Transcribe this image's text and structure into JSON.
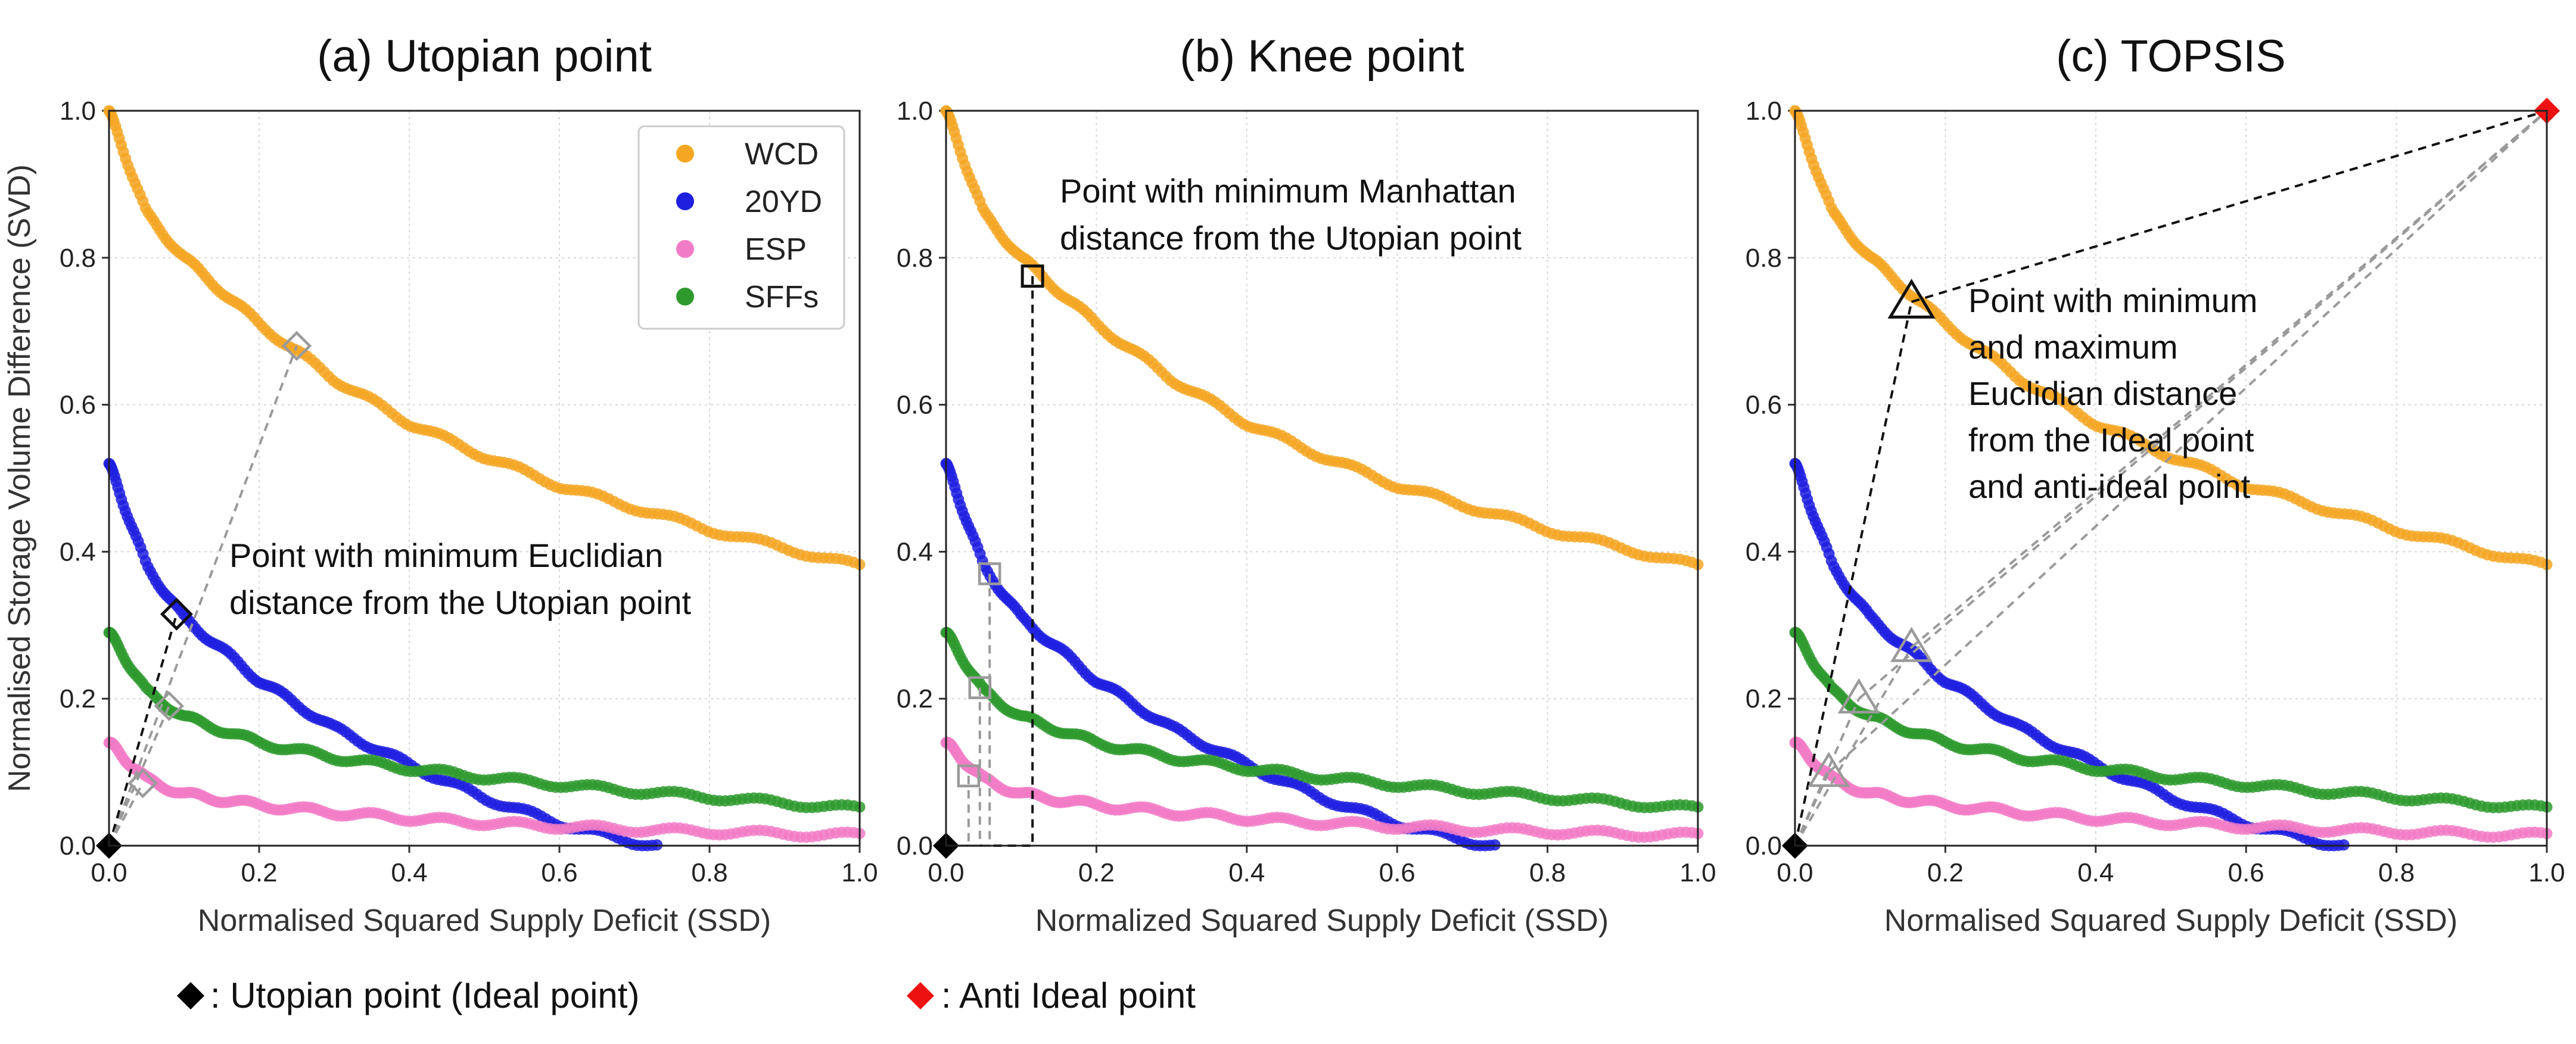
{
  "colors": {
    "WCD": "#f5a623",
    "20YD": "#1f1fe0",
    "ESP": "#f27bc6",
    "SFFs": "#2e9a2e",
    "utopian": "#000000",
    "anti_ideal": "#ee1111"
  },
  "legend_entries": [
    "WCD",
    "20YD",
    "ESP",
    "SFFs"
  ],
  "bottom_legend": {
    "utopian_label": ": Utopian  point (Ideal point)",
    "anti_ideal_label": ": Anti Ideal point",
    "utopian_marker": "black-diamond-icon",
    "anti_ideal_marker": "red-diamond-icon"
  },
  "chart_data": [
    {
      "type": "scatter",
      "title": "(a) Utopian point",
      "xlabel": "Normalised Squared Supply Deficit (SSD)",
      "ylabel": "Normalised Storage Volume Difference (SVD)",
      "xlim": [
        0,
        1
      ],
      "ylim": [
        0,
        1
      ],
      "xticks": [
        "0.0",
        "0.2",
        "0.4",
        "0.6",
        "0.8",
        "1.0"
      ],
      "yticks": [
        "0.0",
        "0.2",
        "0.4",
        "0.6",
        "0.8",
        "1.0"
      ],
      "grid": true,
      "legend": "top-right",
      "series": [
        {
          "name": "WCD",
          "x": [
            0.0,
            0.05,
            0.1,
            0.2,
            0.3,
            0.4,
            0.5,
            0.6,
            0.7,
            0.8,
            0.9,
            1.0
          ],
          "y": [
            1.0,
            0.86,
            0.8,
            0.71,
            0.635,
            0.575,
            0.53,
            0.49,
            0.46,
            0.43,
            0.405,
            0.38
          ]
        },
        {
          "name": "20YD",
          "x": [
            0.0,
            0.05,
            0.1,
            0.2,
            0.3,
            0.4,
            0.5,
            0.6,
            0.7,
            0.73
          ],
          "y": [
            0.52,
            0.38,
            0.31,
            0.225,
            0.16,
            0.11,
            0.065,
            0.03,
            0.005,
            0.0
          ]
        },
        {
          "name": "ESP",
          "x": [
            0.0,
            0.05,
            0.1,
            0.2,
            0.3,
            0.4,
            0.5,
            0.6,
            0.7,
            0.8,
            0.9,
            1.0
          ],
          "y": [
            0.14,
            0.09,
            0.07,
            0.055,
            0.045,
            0.037,
            0.031,
            0.026,
            0.022,
            0.019,
            0.016,
            0.014
          ]
        },
        {
          "name": "SFFs",
          "x": [
            0.0,
            0.05,
            0.1,
            0.2,
            0.3,
            0.4,
            0.5,
            0.6,
            0.7,
            0.8,
            0.9,
            1.0
          ],
          "y": [
            0.29,
            0.21,
            0.175,
            0.14,
            0.12,
            0.105,
            0.093,
            0.083,
            0.074,
            0.066,
            0.058,
            0.05
          ]
        }
      ],
      "selected_points": [
        {
          "series": "WCD",
          "x": 0.25,
          "y": 0.68,
          "marker": "diamond"
        },
        {
          "series": "20YD",
          "x": 0.09,
          "y": 0.315,
          "marker": "diamond"
        },
        {
          "series": "SFFs",
          "x": 0.08,
          "y": 0.19,
          "marker": "diamond"
        },
        {
          "series": "ESP",
          "x": 0.045,
          "y": 0.085,
          "marker": "diamond"
        }
      ],
      "utopian_point": {
        "x": 0,
        "y": 0
      },
      "annotation": [
        "Point with minimum Euclidian",
        "distance from the Utopian point"
      ]
    },
    {
      "type": "scatter",
      "title": "(b) Knee point",
      "xlabel": "Normalized Squared Supply Deficit (SSD)",
      "ylabel": "",
      "xlim": [
        0,
        1
      ],
      "ylim": [
        0,
        1
      ],
      "xticks": [
        "0.0",
        "0.2",
        "0.4",
        "0.6",
        "0.8",
        "1.0"
      ],
      "yticks": [
        "0.0",
        "0.2",
        "0.4",
        "0.6",
        "0.8",
        "1.0"
      ],
      "grid": true,
      "series": [
        {
          "name": "WCD",
          "x": [
            0.0,
            0.05,
            0.1,
            0.2,
            0.3,
            0.4,
            0.5,
            0.6,
            0.7,
            0.8,
            0.9,
            1.0
          ],
          "y": [
            1.0,
            0.86,
            0.8,
            0.71,
            0.635,
            0.575,
            0.53,
            0.49,
            0.46,
            0.43,
            0.405,
            0.38
          ]
        },
        {
          "name": "20YD",
          "x": [
            0.0,
            0.05,
            0.1,
            0.2,
            0.3,
            0.4,
            0.5,
            0.6,
            0.7,
            0.73
          ],
          "y": [
            0.52,
            0.38,
            0.31,
            0.225,
            0.16,
            0.11,
            0.065,
            0.03,
            0.005,
            0.0
          ]
        },
        {
          "name": "ESP",
          "x": [
            0.0,
            0.05,
            0.1,
            0.2,
            0.3,
            0.4,
            0.5,
            0.6,
            0.7,
            0.8,
            0.9,
            1.0
          ],
          "y": [
            0.14,
            0.09,
            0.07,
            0.055,
            0.045,
            0.037,
            0.031,
            0.026,
            0.022,
            0.019,
            0.016,
            0.014
          ]
        },
        {
          "name": "SFFs",
          "x": [
            0.0,
            0.05,
            0.1,
            0.2,
            0.3,
            0.4,
            0.5,
            0.6,
            0.7,
            0.8,
            0.9,
            1.0
          ],
          "y": [
            0.29,
            0.21,
            0.175,
            0.14,
            0.12,
            0.105,
            0.093,
            0.083,
            0.074,
            0.066,
            0.058,
            0.05
          ]
        }
      ],
      "selected_points": [
        {
          "series": "WCD",
          "x": 0.115,
          "y": 0.775,
          "marker": "square"
        },
        {
          "series": "20YD",
          "x": 0.058,
          "y": 0.37,
          "marker": "square"
        },
        {
          "series": "SFFs",
          "x": 0.045,
          "y": 0.215,
          "marker": "square"
        },
        {
          "series": "ESP",
          "x": 0.03,
          "y": 0.095,
          "marker": "square"
        }
      ],
      "utopian_point": {
        "x": 0,
        "y": 0
      },
      "annotation": [
        "Point with minimum Manhattan",
        "distance from the Utopian point"
      ]
    },
    {
      "type": "scatter",
      "title": "(c) TOPSIS",
      "xlabel": "Normalised Squared Supply Deficit (SSD)",
      "ylabel": "",
      "xlim": [
        0,
        1
      ],
      "ylim": [
        0,
        1
      ],
      "xticks": [
        "0.0",
        "0.2",
        "0.4",
        "0.6",
        "0.8",
        "1.0"
      ],
      "yticks": [
        "0.0",
        "0.2",
        "0.4",
        "0.6",
        "0.8",
        "1.0"
      ],
      "grid": true,
      "series": [
        {
          "name": "WCD",
          "x": [
            0.0,
            0.05,
            0.1,
            0.2,
            0.3,
            0.4,
            0.5,
            0.6,
            0.7,
            0.8,
            0.9,
            1.0
          ],
          "y": [
            1.0,
            0.86,
            0.8,
            0.71,
            0.635,
            0.575,
            0.53,
            0.49,
            0.46,
            0.43,
            0.405,
            0.38
          ]
        },
        {
          "name": "20YD",
          "x": [
            0.0,
            0.05,
            0.1,
            0.2,
            0.3,
            0.4,
            0.5,
            0.6,
            0.7,
            0.73
          ],
          "y": [
            0.52,
            0.38,
            0.31,
            0.225,
            0.16,
            0.11,
            0.065,
            0.03,
            0.005,
            0.0
          ]
        },
        {
          "name": "ESP",
          "x": [
            0.0,
            0.05,
            0.1,
            0.2,
            0.3,
            0.4,
            0.5,
            0.6,
            0.7,
            0.8,
            0.9,
            1.0
          ],
          "y": [
            0.14,
            0.09,
            0.07,
            0.055,
            0.045,
            0.037,
            0.031,
            0.026,
            0.022,
            0.019,
            0.016,
            0.014
          ]
        },
        {
          "name": "SFFs",
          "x": [
            0.0,
            0.05,
            0.1,
            0.2,
            0.3,
            0.4,
            0.5,
            0.6,
            0.7,
            0.8,
            0.9,
            1.0
          ],
          "y": [
            0.29,
            0.21,
            0.175,
            0.14,
            0.12,
            0.105,
            0.093,
            0.083,
            0.074,
            0.066,
            0.058,
            0.05
          ]
        }
      ],
      "selected_points": [
        {
          "series": "WCD",
          "x": 0.155,
          "y": 0.74,
          "marker": "triangle"
        },
        {
          "series": "20YD",
          "x": 0.155,
          "y": 0.27,
          "marker": "triangle"
        },
        {
          "series": "SFFs",
          "x": 0.085,
          "y": 0.2,
          "marker": "triangle"
        },
        {
          "series": "ESP",
          "x": 0.045,
          "y": 0.1,
          "marker": "triangle"
        }
      ],
      "utopian_point": {
        "x": 0,
        "y": 0
      },
      "anti_ideal_point": {
        "x": 1,
        "y": 1
      },
      "annotation": [
        "Point with minimum",
        "and maximum",
        "Euclidian distance",
        "from the Ideal point",
        "and anti-ideal point"
      ]
    }
  ]
}
